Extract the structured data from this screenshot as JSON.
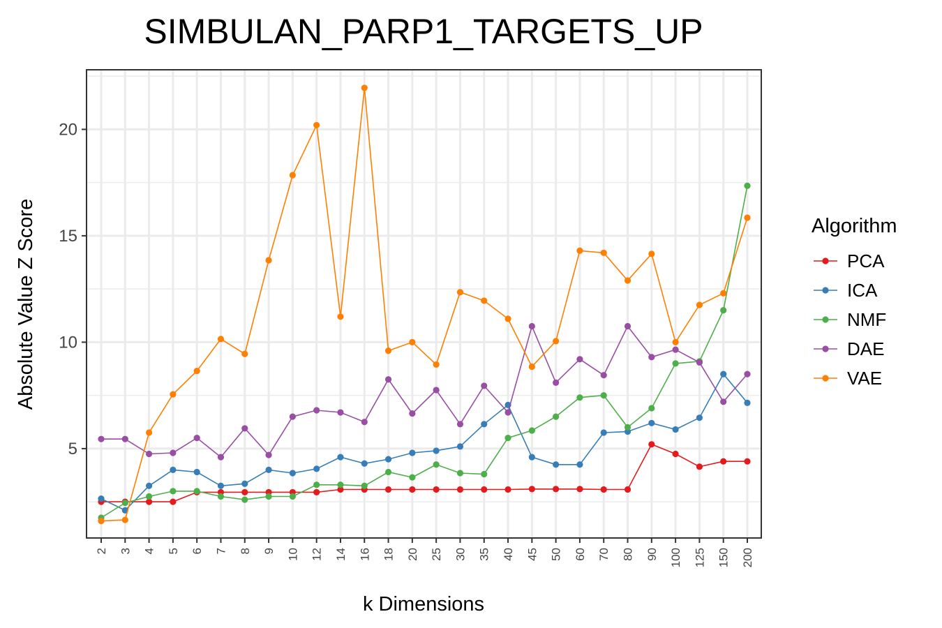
{
  "chart_data": {
    "type": "line",
    "title": "SIMBULAN_PARP1_TARGETS_UP",
    "xlabel": "k Dimensions",
    "ylabel": "Absolute Value Z Score",
    "categories": [
      "2",
      "3",
      "4",
      "5",
      "6",
      "7",
      "8",
      "9",
      "10",
      "12",
      "14",
      "16",
      "18",
      "20",
      "25",
      "30",
      "35",
      "40",
      "45",
      "50",
      "60",
      "70",
      "80",
      "90",
      "100",
      "125",
      "150",
      "200"
    ],
    "y_ticks": [
      "5",
      "10",
      "15",
      "20"
    ],
    "ylim": [
      0.8,
      22.8
    ],
    "grid": true,
    "legend": {
      "title": "Algorithm",
      "position": "right"
    },
    "series": [
      {
        "name": "PCA",
        "color": "#e41a1c",
        "values": [
          2.5,
          2.5,
          2.5,
          2.5,
          2.95,
          2.95,
          2.95,
          2.95,
          2.95,
          2.95,
          3.08,
          3.08,
          3.08,
          3.08,
          3.08,
          3.08,
          3.08,
          3.08,
          3.1,
          3.1,
          3.1,
          3.08,
          3.08,
          5.2,
          4.75,
          4.15,
          4.4,
          4.4
        ]
      },
      {
        "name": "ICA",
        "color": "#377eb8",
        "values": [
          2.65,
          2.1,
          3.25,
          4.0,
          3.9,
          3.25,
          3.35,
          4.0,
          3.85,
          4.05,
          4.6,
          4.3,
          4.5,
          4.8,
          4.9,
          5.1,
          6.15,
          7.05,
          4.6,
          4.25,
          4.25,
          5.75,
          5.8,
          6.2,
          5.9,
          6.45,
          8.5,
          7.15
        ]
      },
      {
        "name": "NMF",
        "color": "#4daf4a",
        "values": [
          1.75,
          2.45,
          2.75,
          3.0,
          3.0,
          2.75,
          2.6,
          2.75,
          2.75,
          3.3,
          3.3,
          3.25,
          3.9,
          3.65,
          4.25,
          3.85,
          3.8,
          5.5,
          5.85,
          6.5,
          7.4,
          7.5,
          6.0,
          6.9,
          9.0,
          9.1,
          11.5,
          17.35
        ]
      },
      {
        "name": "DAE",
        "color": "#984ea3",
        "values": [
          5.45,
          5.45,
          4.75,
          4.8,
          5.5,
          4.6,
          5.95,
          4.7,
          6.5,
          6.8,
          6.7,
          6.25,
          8.25,
          6.65,
          7.75,
          6.15,
          7.95,
          6.7,
          10.75,
          8.1,
          9.2,
          8.45,
          10.75,
          9.3,
          9.65,
          9.05,
          7.2,
          8.5
        ]
      },
      {
        "name": "VAE",
        "color": "#ff7f00",
        "values": [
          1.6,
          1.65,
          5.75,
          7.55,
          8.65,
          10.15,
          9.45,
          13.85,
          17.85,
          20.2,
          11.2,
          21.95,
          9.6,
          10.0,
          8.95,
          12.35,
          11.95,
          11.1,
          8.85,
          10.05,
          14.3,
          14.2,
          12.9,
          14.15,
          10.0,
          11.75,
          12.3,
          15.85
        ]
      }
    ]
  }
}
